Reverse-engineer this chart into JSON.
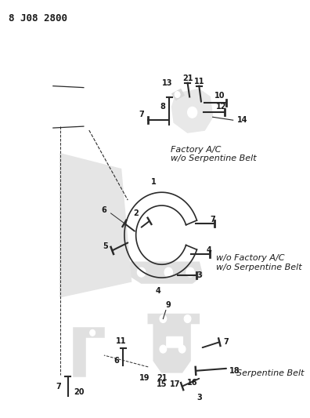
{
  "title": "8 J08 2800",
  "background_color": "#f5f5f0",
  "line_color": "#2a2a2a",
  "text_color": "#1a1a1a",
  "figsize": [
    3.96,
    5.33
  ],
  "dpi": 100,
  "labels": {
    "section1": "Factory A/C\nw/o Serpentine Belt",
    "section2": "w/o Factory A/C\nw/o Serpentine Belt",
    "section3": "Serpentine Belt"
  }
}
